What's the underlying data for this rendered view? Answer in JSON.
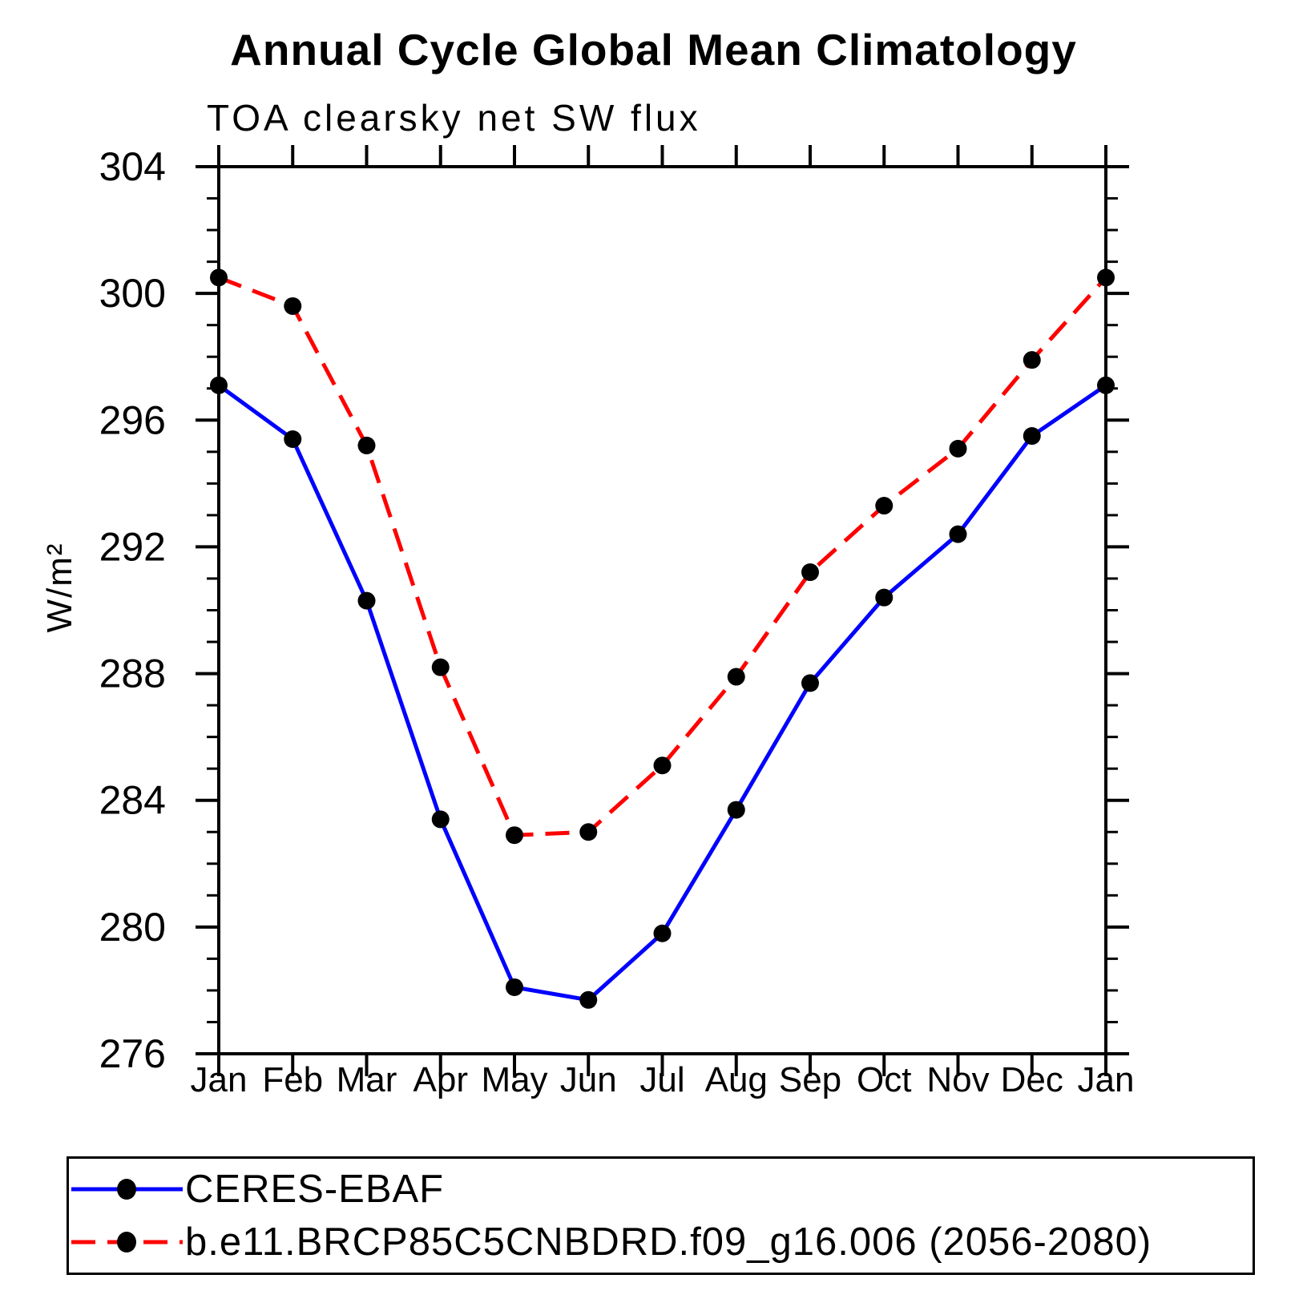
{
  "page": {
    "background": "#ffffff"
  },
  "title": "Annual Cycle Global Mean Climatology",
  "subtitle": "TOA clearsky net SW flux",
  "y_axis_label": "W/m²",
  "legend": {
    "items": [
      {
        "label": "CERES-EBAF",
        "color": "#0000ff",
        "line_style": "solid",
        "marker_color": "#000000"
      },
      {
        "label": "b.e11.BRCP85C5CNBDRD.f09_g16.006 (2056-2080)",
        "color": "#ff0000",
        "line_style": "dashed",
        "marker_color": "#000000"
      }
    ]
  },
  "chart_data": {
    "type": "line",
    "title": "Annual Cycle Global Mean Climatology",
    "subtitle": "TOA clearsky net SW flux",
    "ylabel": "W/m²",
    "xlabel": "",
    "ylim": [
      276,
      304
    ],
    "y_major_ticks": [
      276,
      280,
      284,
      288,
      292,
      296,
      300,
      304
    ],
    "y_minor_step": 1,
    "grid": false,
    "legend_position": "bottom",
    "categories": [
      "Jan",
      "Feb",
      "Mar",
      "Apr",
      "May",
      "Jun",
      "Jul",
      "Aug",
      "Sep",
      "Oct",
      "Nov",
      "Dec",
      "Jan"
    ],
    "series": [
      {
        "name": "CERES-EBAF",
        "color": "#0000ff",
        "line_style": "solid",
        "marker": "filled-circle",
        "marker_color": "#000000",
        "values": [
          297.1,
          295.4,
          290.3,
          283.4,
          278.1,
          277.7,
          279.8,
          283.7,
          287.7,
          290.4,
          292.4,
          295.5,
          297.1
        ]
      },
      {
        "name": "b.e11.BRCP85C5CNBDRD.f09_g16.006 (2056-2080)",
        "color": "#ff0000",
        "line_style": "dashed",
        "marker": "filled-circle",
        "marker_color": "#000000",
        "values": [
          300.5,
          299.6,
          295.2,
          288.2,
          282.9,
          283.0,
          285.1,
          287.9,
          291.2,
          293.3,
          295.1,
          297.9,
          300.5
        ]
      }
    ]
  }
}
